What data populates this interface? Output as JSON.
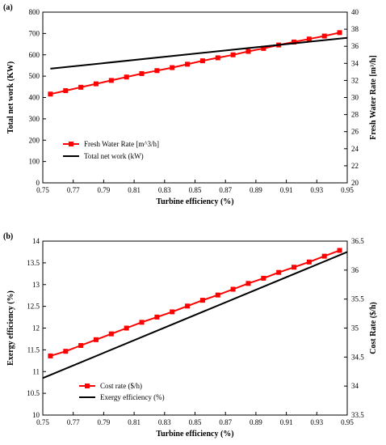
{
  "chart_data": [
    {
      "type": "line",
      "panel_label": "(a)",
      "xlabel": "Turbine efficiency (%)",
      "ylabel": "Total net work (KW)",
      "y2label": "Fresh Water Rate  [m³/h]",
      "xlim": [
        0.75,
        0.95
      ],
      "ylim": [
        0,
        800
      ],
      "y2lim": [
        20,
        40
      ],
      "x_ticks": [
        "0.75",
        "0.77",
        "0.79",
        "0.81",
        "0.83",
        "0.85",
        "0.87",
        "0.89",
        "0.91",
        "0.93",
        "0.95"
      ],
      "y_ticks": [
        "0",
        "100",
        "200",
        "300",
        "400",
        "500",
        "600",
        "700",
        "800"
      ],
      "y2_ticks": [
        "20",
        "22",
        "24",
        "26",
        "28",
        "30",
        "32",
        "34",
        "36",
        "38",
        "40"
      ],
      "legend_position": "center-left",
      "grid": false,
      "series": [
        {
          "name": "Fresh Water Rate  [m^3/h]",
          "axis": "right",
          "color": "#ff0000",
          "marker": "square",
          "x": [
            0.755,
            0.765,
            0.775,
            0.785,
            0.795,
            0.805,
            0.815,
            0.825,
            0.835,
            0.845,
            0.855,
            0.865,
            0.875,
            0.885,
            0.895,
            0.905,
            0.915,
            0.925,
            0.935,
            0.945
          ],
          "values": [
            30.4,
            30.8,
            31.2,
            31.6,
            32.0,
            32.4,
            32.8,
            33.15,
            33.5,
            33.9,
            34.3,
            34.65,
            35.0,
            35.4,
            35.75,
            36.15,
            36.5,
            36.85,
            37.2,
            37.6
          ]
        },
        {
          "name": "Total net work (kW)",
          "axis": "left",
          "color": "#000000",
          "marker": "none",
          "x": [
            0.755,
            0.95
          ],
          "values": [
            535,
            680
          ]
        }
      ]
    },
    {
      "type": "line",
      "panel_label": "(b)",
      "xlabel": "Turbine efficiency (%)",
      "ylabel": "Exergy efficiency (%)",
      "y2label": "Cost Rate ($/h)",
      "xlim": [
        0.75,
        0.95
      ],
      "ylim": [
        10,
        14
      ],
      "y2lim": [
        33.5,
        36.5
      ],
      "x_ticks": [
        "0.75",
        "0.77",
        "0.79",
        "0.81",
        "0.83",
        "0.85",
        "0.87",
        "0.89",
        "0.91",
        "0.93",
        "0.95"
      ],
      "y_ticks": [
        "10",
        "10.5",
        "11",
        "11.5",
        "12",
        "12.5",
        "13",
        "13.5",
        "14"
      ],
      "y2_ticks": [
        "33.5",
        "34",
        "34.5",
        "35",
        "35.5",
        "36",
        "36.5"
      ],
      "legend_position": "bottom-left",
      "grid": false,
      "series": [
        {
          "name": "Cost rate ($/h)",
          "axis": "right",
          "color": "#ff0000",
          "marker": "square",
          "x": [
            0.755,
            0.765,
            0.775,
            0.785,
            0.795,
            0.805,
            0.815,
            0.825,
            0.835,
            0.845,
            0.855,
            0.865,
            0.875,
            0.885,
            0.895,
            0.905,
            0.915,
            0.925,
            0.935,
            0.945
          ],
          "values": [
            34.52,
            34.6,
            34.7,
            34.8,
            34.9,
            35.0,
            35.1,
            35.19,
            35.28,
            35.38,
            35.48,
            35.57,
            35.67,
            35.77,
            35.86,
            35.96,
            36.05,
            36.14,
            36.24,
            36.34
          ]
        },
        {
          "name": "Exergy efficiency (%)",
          "axis": "left",
          "color": "#000000",
          "marker": "none",
          "x": [
            0.75,
            0.95
          ],
          "values": [
            10.85,
            13.75
          ]
        }
      ]
    }
  ]
}
